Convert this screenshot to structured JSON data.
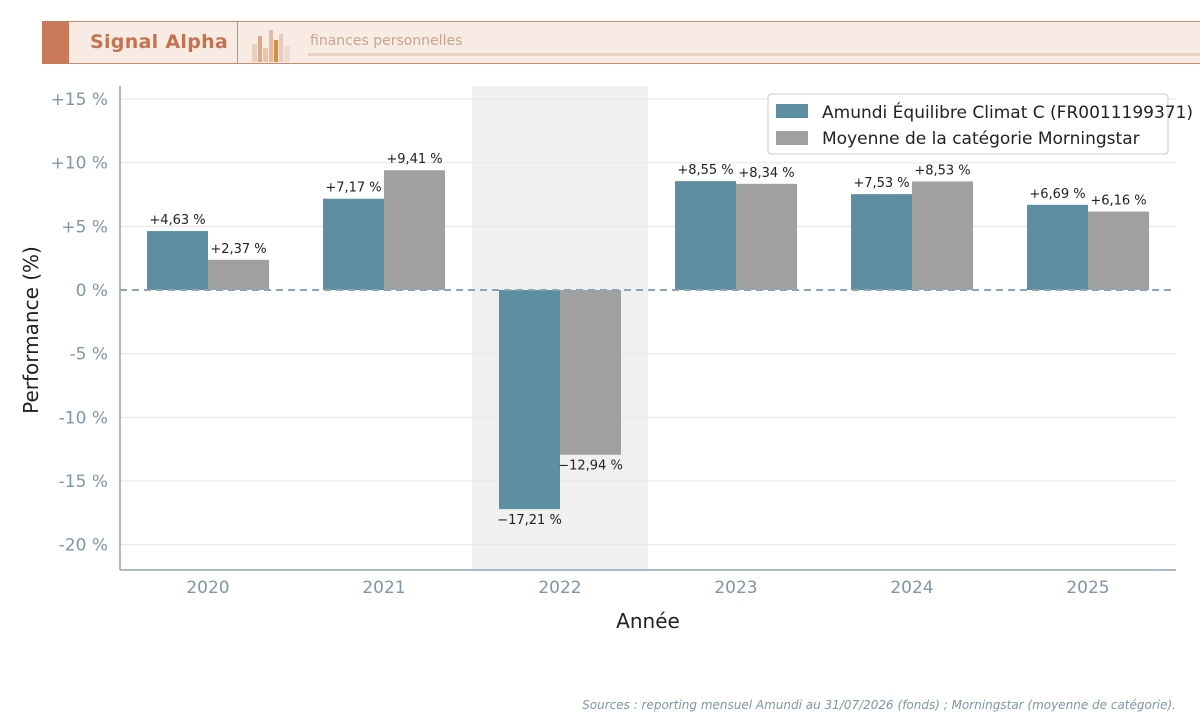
{
  "header": {
    "brand": "Signal Alpha",
    "tagline": "finances personnelles"
  },
  "colors": {
    "fund": "#5d8fa2",
    "category": "#a0a0a0",
    "highlight_band": "#f0f0f0",
    "zero_line": "#8ea3b3",
    "axis_text": "#7f95a8"
  },
  "chart_data": {
    "type": "bar",
    "xlabel": "Année",
    "ylabel": "Performance (%)",
    "categories": [
      "2020",
      "2021",
      "2022",
      "2023",
      "2024",
      "2025"
    ],
    "series": [
      {
        "name": "Amundi Équilibre Climat C (FR0011199371)",
        "values": [
          4.63,
          7.17,
          -17.21,
          8.55,
          7.53,
          6.69
        ],
        "labels": [
          "+4,63 %",
          "+7,17 %",
          "−17,21 %",
          "+8,55 %",
          "+7,53 %",
          "+6,69 %"
        ]
      },
      {
        "name": "Moyenne de la catégorie Morningstar",
        "values": [
          2.37,
          9.41,
          -12.94,
          8.34,
          8.53,
          6.16
        ],
        "labels": [
          "+2,37 %",
          "+9,41 %",
          "−12,94 %",
          "+8,34 %",
          "+8,53 %",
          "+6,16 %"
        ]
      }
    ],
    "ylim": [
      -22,
      16
    ],
    "yticks": [
      15,
      10,
      5,
      0,
      -5,
      -10,
      -15,
      -20
    ],
    "ytick_labels": [
      "+15 %",
      "+10 %",
      "+5 %",
      "0 %",
      "-5 %",
      "-10 %",
      "-15 %",
      "-20 %"
    ],
    "highlight_category": "2022",
    "grid": true,
    "legend_position": "top-right"
  },
  "footer": {
    "sources": "Sources : reporting mensuel Amundi au 31/07/2026 (fonds) ; Morningstar (moyenne de catégorie)."
  }
}
